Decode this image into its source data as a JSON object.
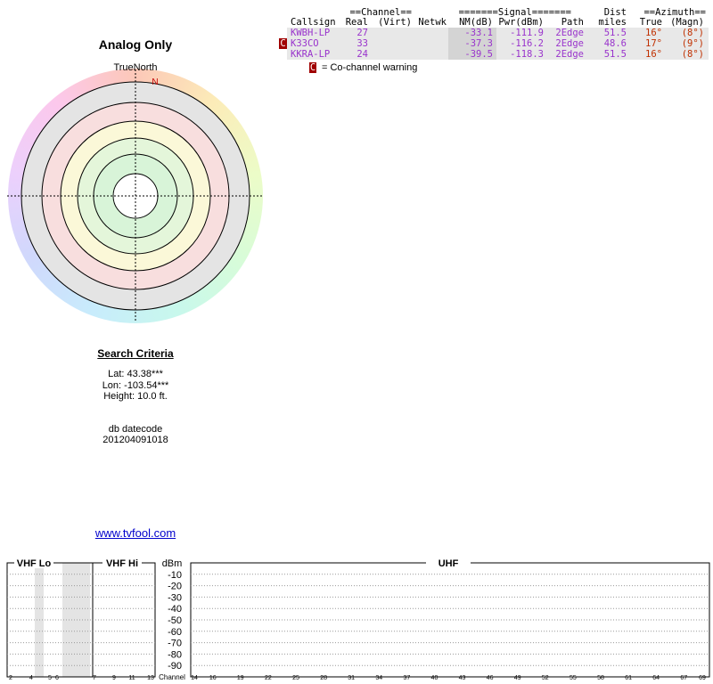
{
  "title": "Analog Only",
  "polar": {
    "north_label": "TrueNorth",
    "n_label": "N"
  },
  "table": {
    "group_headers": {
      "channel": "==Channel==",
      "signal": "=======Signal=======",
      "dist": "Dist",
      "azimuth": "==Azimuth=="
    },
    "columns": {
      "callsign": "Callsign",
      "real": "Real",
      "virt": "(Virt)",
      "netwk": "Netwk",
      "nm": "NM(dB)",
      "pwr": "Pwr(dBm)",
      "path": "Path",
      "dist": "miles",
      "true": "True",
      "magn": "(Magn)"
    },
    "rows": [
      {
        "callsign": "KWBH-LP",
        "real": "27",
        "nm": "-33.1",
        "pwr": "-111.9",
        "path": "2Edge",
        "dist": "51.5",
        "true": "16°",
        "magn": "(8°)"
      },
      {
        "warning": "C",
        "callsign": "K33CO",
        "real": "33",
        "nm": "-37.3",
        "pwr": "-116.2",
        "path": "2Edge",
        "dist": "48.6",
        "true": "17°",
        "magn": "(9°)"
      },
      {
        "callsign": "KKRA-LP",
        "real": "24",
        "nm": "-39.5",
        "pwr": "-118.3",
        "path": "2Edge",
        "dist": "51.5",
        "true": "16°",
        "magn": "(8°)"
      }
    ]
  },
  "legend": {
    "marker": "C",
    "text": "= Co-channel warning"
  },
  "search": {
    "title": "Search Criteria",
    "lat": "Lat: 43.38***",
    "lon": "Lon: -103.54***",
    "height": "Height: 10.0 ft.",
    "db_label": "db datecode",
    "db_value": "201204091018"
  },
  "link": "www.tvfool.com",
  "spectrum": {
    "vhf_lo": "VHF Lo",
    "vhf_hi": "VHF Hi",
    "uhf": "UHF",
    "y_label": "dBm",
    "x_label": "Channel",
    "ylim": [
      0,
      -100
    ],
    "yticks": [
      -10,
      -20,
      -30,
      -40,
      -50,
      -60,
      -70,
      -80,
      -90
    ],
    "vhf_lo_channels": [
      2,
      4,
      5,
      6
    ],
    "vhf_hi_channels": [
      7,
      9,
      11,
      13
    ],
    "uhf_channels": [
      14,
      16,
      19,
      22,
      25,
      28,
      31,
      34,
      37,
      40,
      43,
      46,
      49,
      52,
      55,
      58,
      61,
      64,
      67,
      69
    ]
  }
}
